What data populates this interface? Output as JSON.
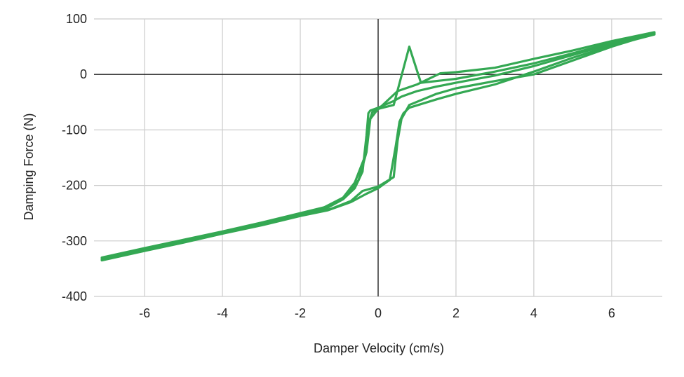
{
  "chart_data": {
    "type": "line",
    "title": "",
    "xlabel": "Damper Velocity (cm/s)",
    "ylabel": "Damping Force (N)",
    "xlim": [
      -7.3,
      7.3
    ],
    "ylim": [
      -400,
      100
    ],
    "x_ticks": [
      -6,
      -4,
      -2,
      0,
      2,
      4,
      6
    ],
    "y_ticks": [
      -400,
      -300,
      -200,
      -100,
      0,
      100
    ],
    "grid": true,
    "legend": "none",
    "color": "#34a853",
    "series": [
      {
        "x": [
          -7.1,
          -6,
          -5,
          -4,
          -3,
          -2,
          -1.3,
          -0.9,
          -0.6,
          -0.4,
          -0.3,
          -0.25,
          -0.2,
          0,
          0.4,
          0.6,
          0.8,
          1.0,
          1.5,
          2,
          3,
          4,
          5,
          6,
          7.1
        ],
        "values": [
          -333,
          -316,
          -300,
          -284,
          -270,
          -253,
          -240,
          -225,
          -205,
          -175,
          -110,
          -70,
          -65,
          -60,
          -48,
          -40,
          -35,
          -30,
          -22,
          -15,
          -2,
          15,
          35,
          55,
          73
        ]
      },
      {
        "x": [
          -7.1,
          -6,
          -5,
          -4,
          -3,
          -2,
          -1.3,
          -0.7,
          -0.3,
          0,
          0.3,
          0.45,
          0.55,
          0.65,
          0.8,
          1.5,
          2,
          3,
          4,
          5,
          6,
          7.1
        ],
        "values": [
          -335,
          -318,
          -303,
          -287,
          -272,
          -255,
          -245,
          -230,
          -215,
          -205,
          -190,
          -130,
          -85,
          -70,
          -60,
          -45,
          -35,
          -18,
          5,
          30,
          52,
          72
        ]
      },
      {
        "x": [
          -7.1,
          -6,
          -5,
          -4,
          -3,
          -2,
          -1.3,
          -0.8,
          -0.5,
          -0.3,
          -0.2,
          0,
          0.4,
          0.8,
          1.1,
          2,
          3,
          4,
          5,
          6,
          7.1
        ],
        "values": [
          -330,
          -313,
          -298,
          -283,
          -267,
          -250,
          -238,
          -218,
          -190,
          -140,
          -80,
          -62,
          -55,
          50,
          -15,
          -8,
          5,
          20,
          38,
          57,
          75
        ]
      },
      {
        "x": [
          -7.1,
          -6,
          -5,
          -4,
          -3,
          -2,
          -1.2,
          -0.7,
          -0.4,
          0,
          0.4,
          0.5,
          0.6,
          0.8,
          1.5,
          2,
          3,
          4,
          5,
          6,
          7.1
        ],
        "values": [
          -332,
          -315,
          -301,
          -286,
          -271,
          -254,
          -242,
          -228,
          -210,
          -202,
          -185,
          -120,
          -80,
          -55,
          -35,
          -25,
          -12,
          0,
          25,
          50,
          74
        ]
      },
      {
        "x": [
          -7.1,
          -6,
          -5,
          -4,
          -3,
          -2,
          -1.4,
          -0.9,
          -0.6,
          -0.35,
          -0.25,
          -0.15,
          0,
          0.5,
          1.0,
          1.6,
          2,
          3,
          4,
          5,
          6,
          7.1
        ],
        "values": [
          -334,
          -317,
          -302,
          -285,
          -268,
          -252,
          -240,
          -222,
          -195,
          -150,
          -90,
          -68,
          -63,
          -30,
          -18,
          2,
          4,
          12,
          28,
          43,
          60,
          76
        ]
      }
    ]
  }
}
